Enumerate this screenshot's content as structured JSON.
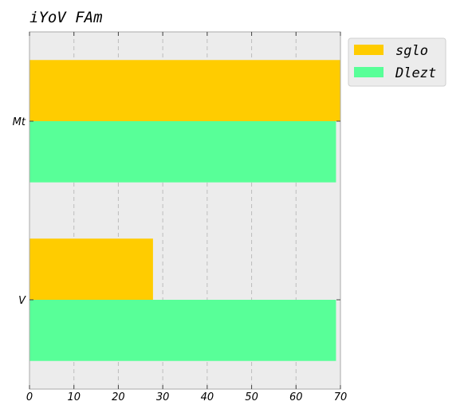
{
  "chart_data": {
    "type": "bar",
    "orientation": "horizontal",
    "title": "iYoV FAm",
    "xlabel": "",
    "ylabel": "",
    "categories": [
      "Mt",
      "V"
    ],
    "series": [
      {
        "name": "sglo",
        "values": [
          70,
          27.8
        ],
        "color": "#ffcc00"
      },
      {
        "name": "Dlezt",
        "values": [
          69,
          69
        ],
        "color": "#58ff98"
      }
    ],
    "xlim": [
      0,
      70
    ],
    "xticks": [
      0,
      10,
      20,
      30,
      40,
      50,
      60,
      70
    ],
    "grid": true,
    "grid_axis": "x",
    "background": "#ececec",
    "legend_position": "outside-top-right"
  }
}
